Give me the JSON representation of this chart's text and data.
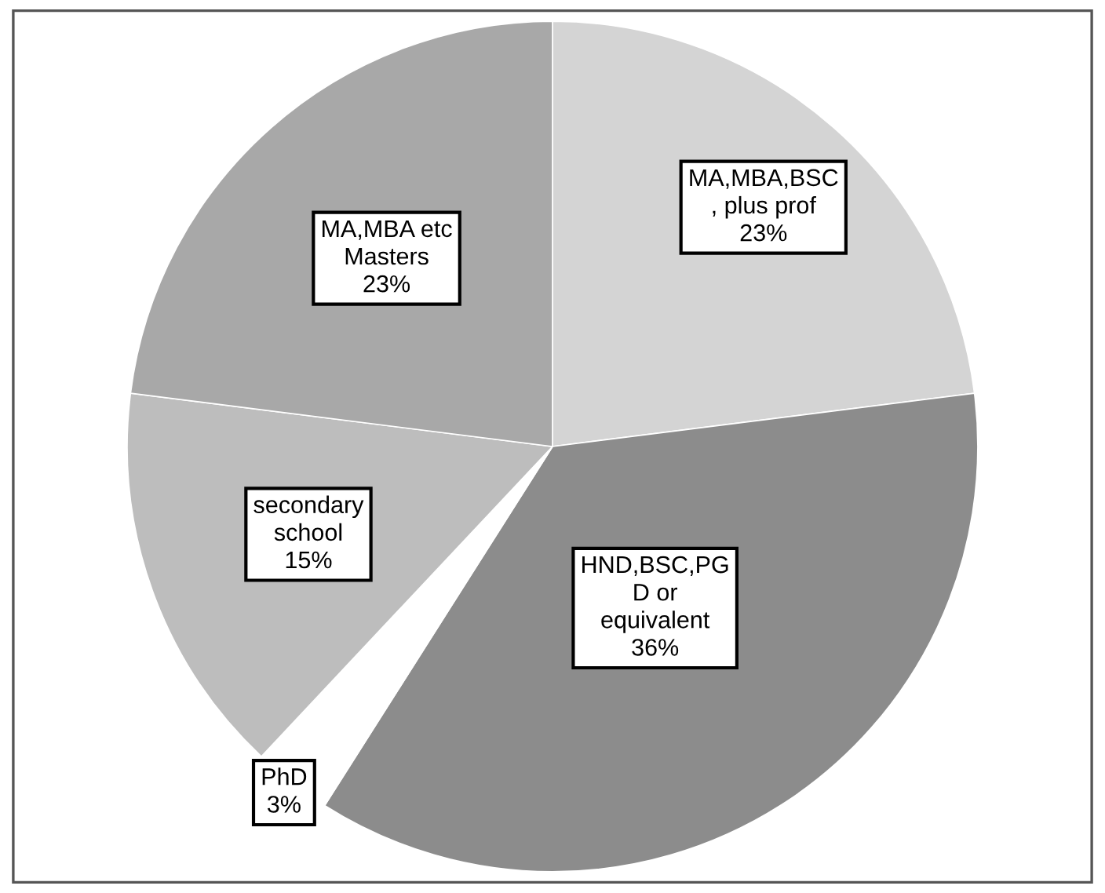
{
  "chart_data": {
    "type": "pie",
    "categories": [
      "MA,MBA,BSC\n, plus prof",
      "HND,BSC,PG\nD or\nequivalent",
      "PhD",
      "secondary\nschool",
      "MA,MBA etc\nMasters"
    ],
    "values": [
      23,
      36,
      3,
      15,
      23
    ],
    "value_labels": [
      "23%",
      "36%",
      "3%",
      "15%",
      "23%"
    ],
    "colors": [
      "#d4d4d4",
      "#8c8c8c",
      "#ffffff",
      "#bdbdbd",
      "#a8a8a8"
    ]
  }
}
